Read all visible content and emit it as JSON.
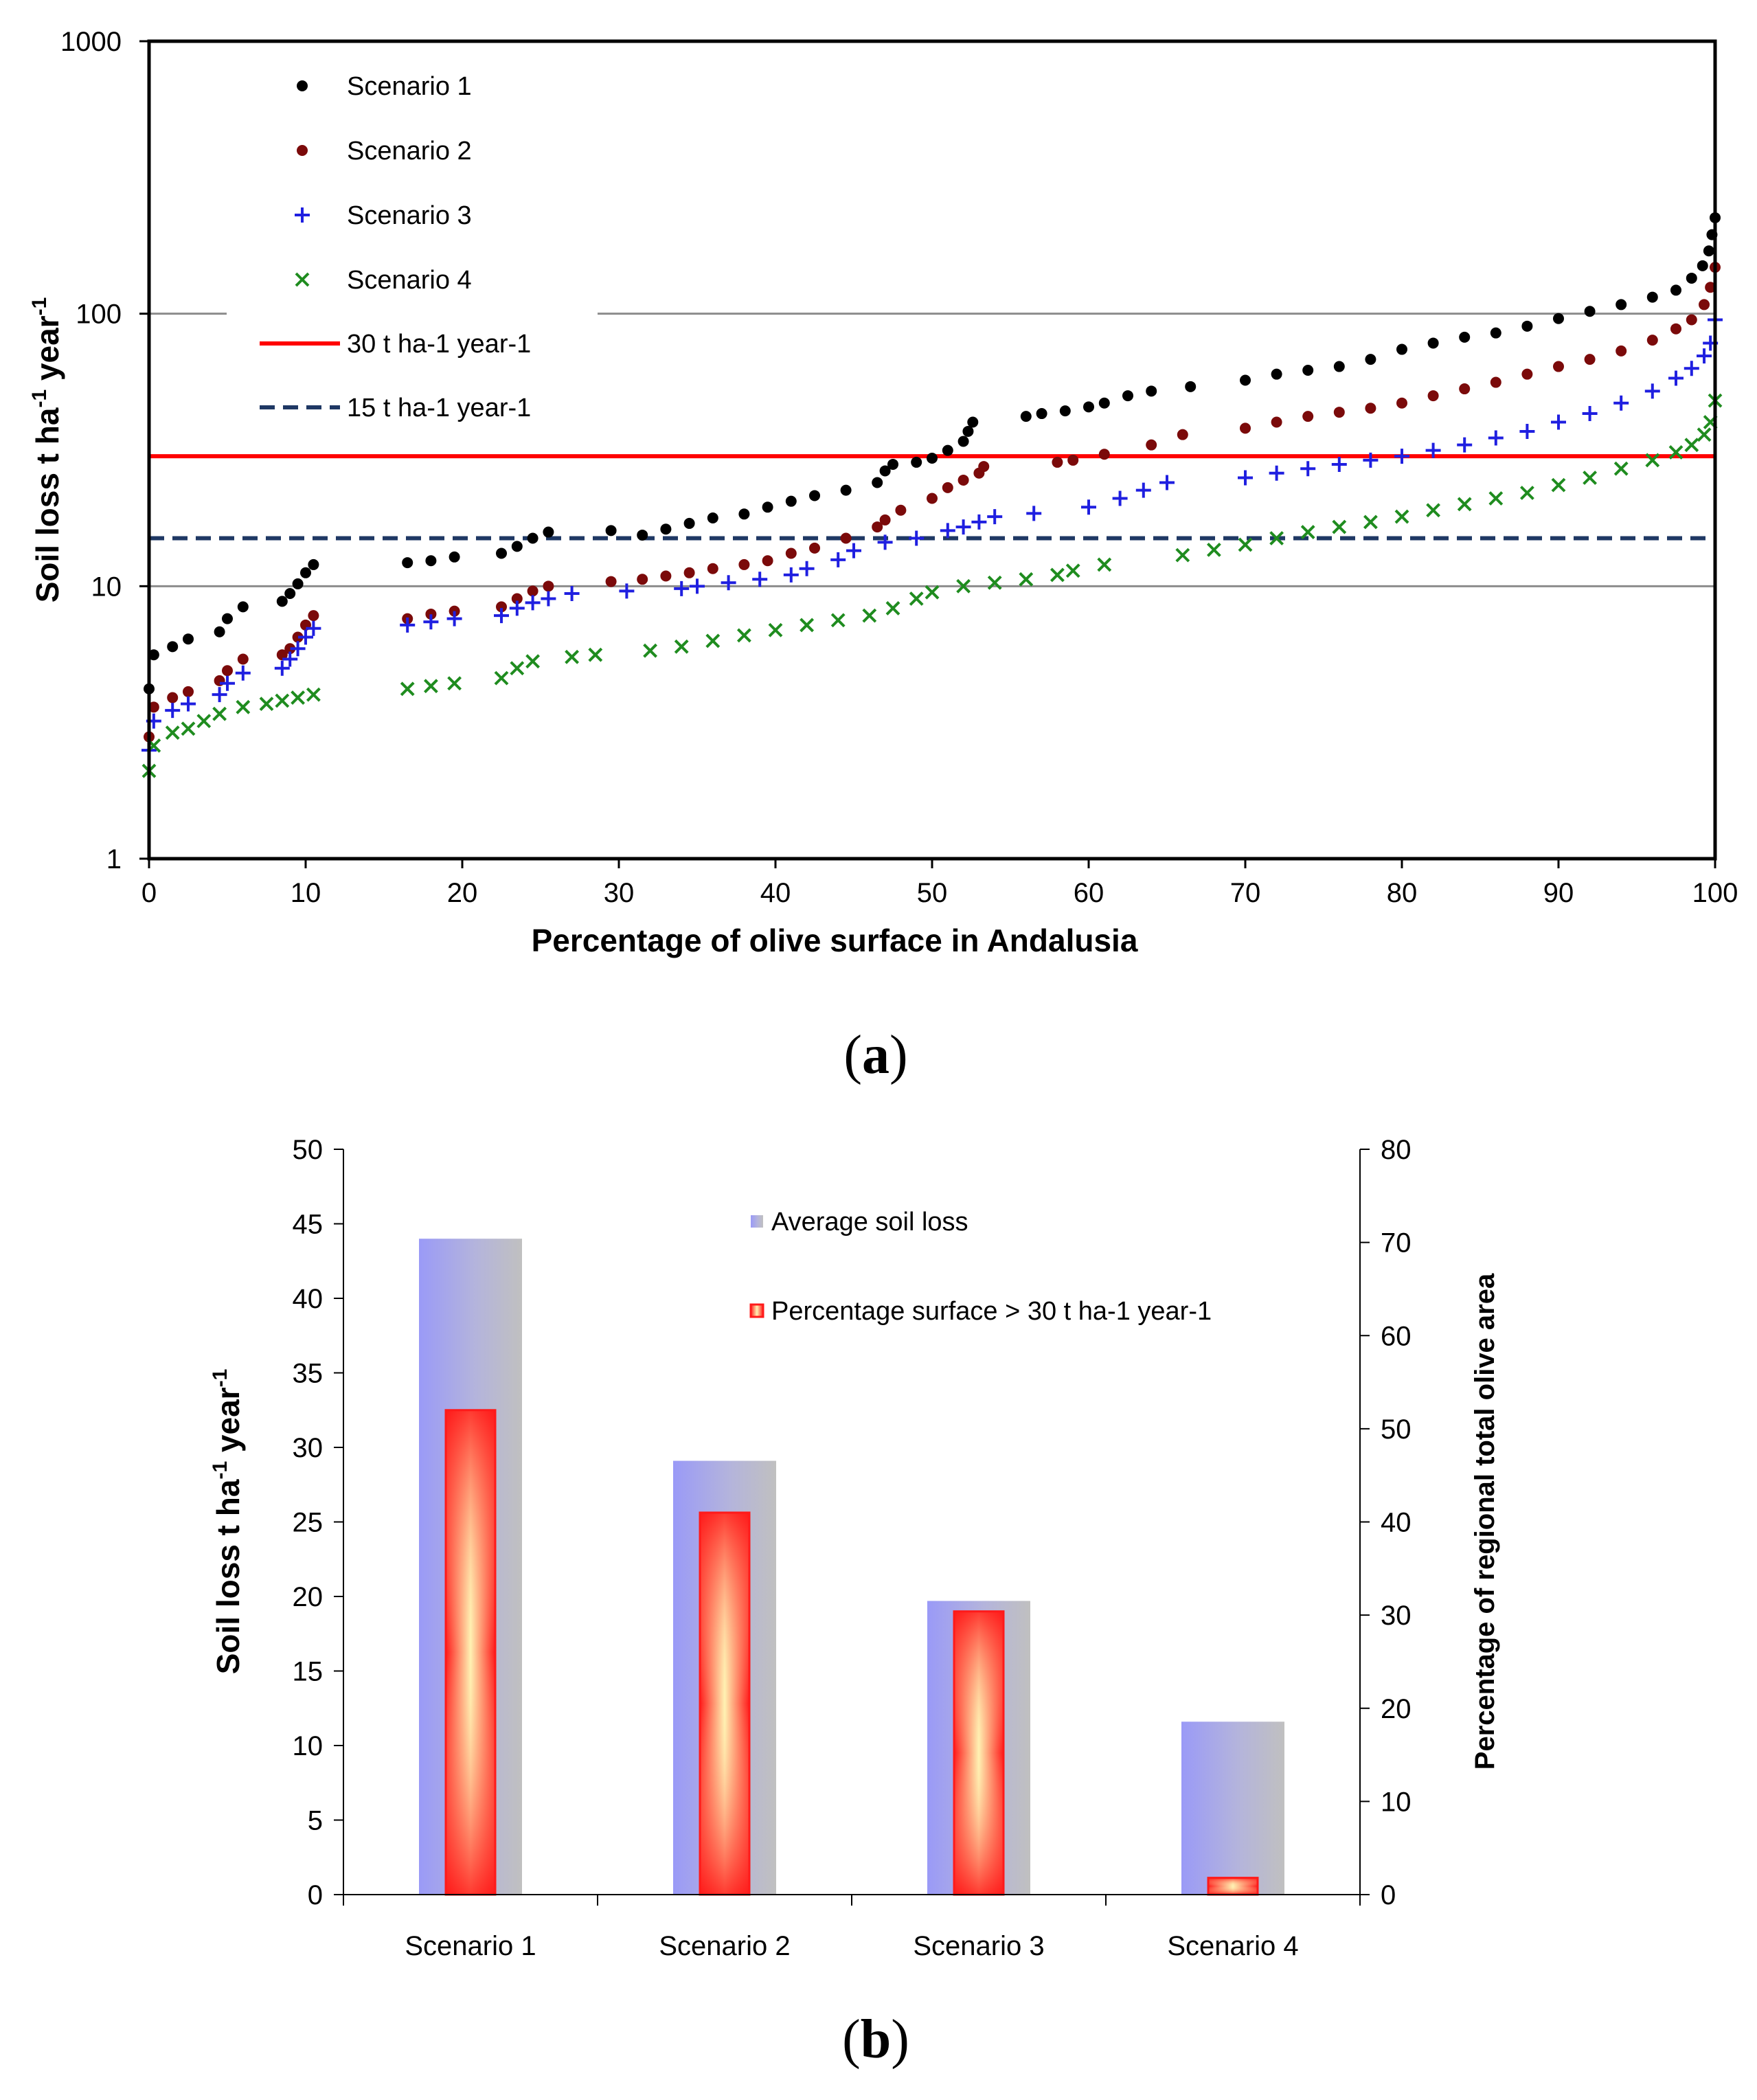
{
  "chart_data": [
    {
      "type": "scatter",
      "panel_label": "(a)",
      "panel_letter": "a",
      "xlabel": "Percentage of olive surface in Andalusia",
      "ylabel": "Soil loss  t ha-1 year-1",
      "ylabel_parts": {
        "main": "Soil loss  t ha",
        "sup1": "-1",
        "mid": " year",
        "sup2": "-1"
      },
      "yscale": "log",
      "xlim": [
        0,
        100
      ],
      "ylim": [
        1,
        1000
      ],
      "x_ticks": [
        "0",
        "10",
        "20",
        "30",
        "40",
        "50",
        "60",
        "70",
        "80",
        "90",
        "100"
      ],
      "y_ticks": [
        "1",
        "10",
        "100",
        "1000"
      ],
      "grid": "horizontal at 10 and 100",
      "legend_position": "top-left",
      "series": [
        {
          "name": "Scenario 1",
          "marker": "dot",
          "color": "#000000",
          "points": [
            [
              0,
              4.2
            ],
            [
              0.3,
              5.6
            ],
            [
              1.5,
              6.0
            ],
            [
              2.5,
              6.4
            ],
            [
              4.5,
              6.8
            ],
            [
              5,
              7.6
            ],
            [
              6,
              8.4
            ],
            [
              8.5,
              8.8
            ],
            [
              9,
              9.4
            ],
            [
              9.5,
              10.2
            ],
            [
              10,
              11.2
            ],
            [
              10.5,
              12.0
            ],
            [
              16.5,
              12.2
            ],
            [
              18,
              12.4
            ],
            [
              19.5,
              12.8
            ],
            [
              22.5,
              13.2
            ],
            [
              23.5,
              14.0
            ],
            [
              24.5,
              15.0
            ],
            [
              25.5,
              15.8
            ],
            [
              29.5,
              16.0
            ],
            [
              31.5,
              15.4
            ],
            [
              33,
              16.2
            ],
            [
              34.5,
              17.0
            ],
            [
              36,
              17.8
            ],
            [
              38,
              18.4
            ],
            [
              39.5,
              19.5
            ],
            [
              41,
              20.5
            ],
            [
              42.5,
              21.5
            ],
            [
              44.5,
              22.5
            ],
            [
              46.5,
              24.0
            ],
            [
              47,
              26.5
            ],
            [
              47.5,
              28.0
            ],
            [
              49,
              28.5
            ],
            [
              50,
              29.5
            ],
            [
              51,
              31.5
            ],
            [
              52,
              34.0
            ],
            [
              52.3,
              37.0
            ],
            [
              52.6,
              40.0
            ],
            [
              56,
              42.0
            ],
            [
              57,
              43.0
            ],
            [
              58.5,
              44.0
            ],
            [
              60,
              45.5
            ],
            [
              61,
              47.0
            ],
            [
              62.5,
              50.0
            ],
            [
              64,
              52.0
            ],
            [
              66.5,
              54.0
            ],
            [
              70,
              57.0
            ],
            [
              72,
              60.0
            ],
            [
              74,
              62.0
            ],
            [
              76,
              64.0
            ],
            [
              78,
              68.0
            ],
            [
              80,
              74.0
            ],
            [
              82,
              78.0
            ],
            [
              84,
              82.0
            ],
            [
              86,
              85.0
            ],
            [
              88,
              90.0
            ],
            [
              90,
              96.0
            ],
            [
              92,
              102.0
            ],
            [
              94,
              108.0
            ],
            [
              96,
              115.0
            ],
            [
              97.5,
              122.0
            ],
            [
              98.5,
              135.0
            ],
            [
              99.2,
              150.0
            ],
            [
              99.6,
              170.0
            ],
            [
              99.8,
              195.0
            ],
            [
              100,
              225.0
            ]
          ]
        },
        {
          "name": "Scenario 2",
          "marker": "dot",
          "color": "#7B0A0A",
          "points": [
            [
              0,
              2.8
            ],
            [
              0.3,
              3.6
            ],
            [
              1.5,
              3.9
            ],
            [
              2.5,
              4.1
            ],
            [
              4.5,
              4.5
            ],
            [
              5,
              4.9
            ],
            [
              6,
              5.4
            ],
            [
              8.5,
              5.6
            ],
            [
              9,
              5.9
            ],
            [
              9.5,
              6.5
            ],
            [
              10,
              7.2
            ],
            [
              10.5,
              7.8
            ],
            [
              16.5,
              7.6
            ],
            [
              18,
              7.9
            ],
            [
              19.5,
              8.1
            ],
            [
              22.5,
              8.4
            ],
            [
              23.5,
              9.0
            ],
            [
              24.5,
              9.6
            ],
            [
              25.5,
              10.0
            ],
            [
              29.5,
              10.4
            ],
            [
              31.5,
              10.6
            ],
            [
              33,
              10.9
            ],
            [
              34.5,
              11.2
            ],
            [
              36,
              11.6
            ],
            [
              38,
              12.0
            ],
            [
              39.5,
              12.4
            ],
            [
              41,
              13.2
            ],
            [
              42.5,
              13.8
            ],
            [
              44.5,
              15.0
            ],
            [
              46.5,
              16.5
            ],
            [
              47,
              17.5
            ],
            [
              48,
              19.0
            ],
            [
              50,
              21.0
            ],
            [
              51,
              23.0
            ],
            [
              52,
              24.5
            ],
            [
              53,
              26.0
            ],
            [
              53.3,
              27.5
            ],
            [
              58,
              28.5
            ],
            [
              59,
              29.0
            ],
            [
              61,
              30.5
            ],
            [
              64,
              33.0
            ],
            [
              66,
              36.0
            ],
            [
              70,
              38.0
            ],
            [
              72,
              40.0
            ],
            [
              74,
              42.0
            ],
            [
              76,
              43.5
            ],
            [
              78,
              45.0
            ],
            [
              80,
              47.0
            ],
            [
              82,
              50.0
            ],
            [
              84,
              53.0
            ],
            [
              86,
              56.0
            ],
            [
              88,
              60.0
            ],
            [
              90,
              64.0
            ],
            [
              92,
              68.0
            ],
            [
              94,
              73.0
            ],
            [
              96,
              80.0
            ],
            [
              97.5,
              88.0
            ],
            [
              98.5,
              95.0
            ],
            [
              99.3,
              108.0
            ],
            [
              99.7,
              125.0
            ],
            [
              100,
              148.0
            ]
          ]
        },
        {
          "name": "Scenario 3",
          "marker": "plus",
          "color": "#1F1FE0",
          "points": [
            [
              0,
              2.5
            ],
            [
              0.3,
              3.2
            ],
            [
              1.5,
              3.5
            ],
            [
              2.5,
              3.7
            ],
            [
              4.5,
              4.0
            ],
            [
              5,
              4.4
            ],
            [
              6,
              4.8
            ],
            [
              8.5,
              5.0
            ],
            [
              9,
              5.4
            ],
            [
              9.5,
              5.9
            ],
            [
              10,
              6.5
            ],
            [
              10.5,
              7.0
            ],
            [
              16.5,
              7.2
            ],
            [
              18,
              7.4
            ],
            [
              19.5,
              7.6
            ],
            [
              22.5,
              7.8
            ],
            [
              23.5,
              8.3
            ],
            [
              24.5,
              8.7
            ],
            [
              25.5,
              9.0
            ],
            [
              27,
              9.4
            ],
            [
              30.5,
              9.6
            ],
            [
              34,
              9.8
            ],
            [
              35,
              10.0
            ],
            [
              37,
              10.3
            ],
            [
              39,
              10.6
            ],
            [
              41,
              11.0
            ],
            [
              42,
              11.6
            ],
            [
              44,
              12.5
            ],
            [
              45,
              13.5
            ],
            [
              47,
              14.5
            ],
            [
              49,
              15.0
            ],
            [
              51,
              16.0
            ],
            [
              52,
              16.5
            ],
            [
              53,
              17.2
            ],
            [
              54,
              18.0
            ],
            [
              56.5,
              18.5
            ],
            [
              60,
              19.5
            ],
            [
              62,
              21.0
            ],
            [
              63.5,
              22.5
            ],
            [
              65,
              24.0
            ],
            [
              70,
              25.0
            ],
            [
              72,
              26.0
            ],
            [
              74,
              27.0
            ],
            [
              76,
              28.0
            ],
            [
              78,
              29.0
            ],
            [
              80,
              30.0
            ],
            [
              82,
              31.5
            ],
            [
              84,
              33.0
            ],
            [
              86,
              35.0
            ],
            [
              88,
              37.0
            ],
            [
              90,
              40.0
            ],
            [
              92,
              43.0
            ],
            [
              94,
              47.0
            ],
            [
              96,
              52.0
            ],
            [
              97.5,
              58.0
            ],
            [
              98.5,
              63.0
            ],
            [
              99.3,
              70.0
            ],
            [
              99.7,
              78.0
            ],
            [
              100,
              95.0
            ]
          ]
        },
        {
          "name": "Scenario 4",
          "marker": "x",
          "color": "#1F8C1F",
          "points": [
            [
              0,
              2.1
            ],
            [
              0.3,
              2.6
            ],
            [
              1.5,
              2.9
            ],
            [
              2.5,
              3.0
            ],
            [
              3.5,
              3.2
            ],
            [
              4.5,
              3.4
            ],
            [
              6,
              3.6
            ],
            [
              7.5,
              3.7
            ],
            [
              8.5,
              3.8
            ],
            [
              9.5,
              3.9
            ],
            [
              10.5,
              4.0
            ],
            [
              16.5,
              4.2
            ],
            [
              18,
              4.3
            ],
            [
              19.5,
              4.4
            ],
            [
              22.5,
              4.6
            ],
            [
              23.5,
              5.0
            ],
            [
              24.5,
              5.3
            ],
            [
              27,
              5.5
            ],
            [
              28.5,
              5.6
            ],
            [
              32,
              5.8
            ],
            [
              34,
              6.0
            ],
            [
              36,
              6.3
            ],
            [
              38,
              6.6
            ],
            [
              40,
              6.9
            ],
            [
              42,
              7.2
            ],
            [
              44,
              7.5
            ],
            [
              46,
              7.8
            ],
            [
              47.5,
              8.3
            ],
            [
              49,
              9.0
            ],
            [
              50,
              9.5
            ],
            [
              52,
              10.0
            ],
            [
              54,
              10.3
            ],
            [
              56,
              10.6
            ],
            [
              58,
              11.0
            ],
            [
              59,
              11.4
            ],
            [
              61,
              12.0
            ],
            [
              66,
              13.0
            ],
            [
              68,
              13.6
            ],
            [
              70,
              14.2
            ],
            [
              72,
              15.0
            ],
            [
              74,
              15.8
            ],
            [
              76,
              16.5
            ],
            [
              78,
              17.2
            ],
            [
              80,
              18.0
            ],
            [
              82,
              19.0
            ],
            [
              84,
              20.0
            ],
            [
              86,
              21.0
            ],
            [
              88,
              22.0
            ],
            [
              90,
              23.5
            ],
            [
              92,
              25.0
            ],
            [
              94,
              27.0
            ],
            [
              96,
              29.0
            ],
            [
              97.5,
              31.0
            ],
            [
              98.5,
              33.0
            ],
            [
              99.3,
              36.0
            ],
            [
              99.7,
              40.0
            ],
            [
              100,
              48.0
            ]
          ]
        }
      ],
      "reference_lines": [
        {
          "label": "30 t ha-1 year-1",
          "value": 30,
          "color": "#FF0000",
          "style": "solid"
        },
        {
          "label": "15 t ha-1 year-1",
          "value": 15,
          "color": "#1F3864",
          "style": "dashed"
        }
      ]
    },
    {
      "type": "bar",
      "panel_label": "(b)",
      "panel_letter": "b",
      "categories": [
        "Scenario 1",
        "Scenario 2",
        "Scenario 3",
        "Scenario 4"
      ],
      "ylabel": "Soil loss t ha-1 year-1",
      "ylabel_parts": {
        "main": "Soil loss t ha",
        "sup1": "-1",
        "mid": " year",
        "sup2": "-1"
      },
      "y2label": "Percentage of regional total olive area",
      "ylim": [
        0,
        50
      ],
      "y2lim": [
        0,
        80
      ],
      "y_ticks": [
        "0",
        "5",
        "10",
        "15",
        "20",
        "25",
        "30",
        "35",
        "40",
        "45",
        "50"
      ],
      "y2_ticks": [
        "0",
        "10",
        "20",
        "30",
        "40",
        "50",
        "60",
        "70",
        "80"
      ],
      "legend_position": "top-center",
      "series": [
        {
          "name": "Average soil loss",
          "axis": "left",
          "values": [
            44,
            29.1,
            19.7,
            11.6
          ],
          "color": "#9A9AF7"
        },
        {
          "name": "Percentage surface > 30 t ha-1 year-1",
          "axis": "right",
          "values": [
            52,
            41,
            30.4,
            1.8
          ],
          "color": "#FF1A1A"
        }
      ]
    }
  ]
}
